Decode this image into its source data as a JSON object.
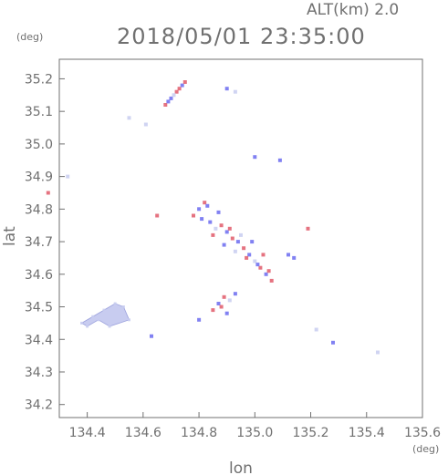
{
  "chart_data": {
    "type": "scatter",
    "title": "2018/05/01 23:35:00",
    "subtitle": "ALT(km) 2.0",
    "xlabel": "lon",
    "ylabel": "lat",
    "xunit": "(deg)",
    "yunit": "(deg)",
    "xlim": [
      134.3,
      135.6
    ],
    "ylim": [
      34.16,
      35.26
    ],
    "xticks": [
      "134.4",
      "134.6",
      "134.8",
      "135.0",
      "135.2",
      "135.4",
      "135.6"
    ],
    "yticks": [
      "34.2",
      "34.3",
      "34.4",
      "34.5",
      "34.6",
      "34.7",
      "34.8",
      "34.9",
      "35.0",
      "35.1",
      "35.2"
    ],
    "grid": false,
    "colors": {
      "positive": "#e05a6a",
      "negative": "#6b6bf0",
      "neutral": "#c8ccf0",
      "axis": "#707070"
    },
    "clusters": [
      {
        "name": "large-patch-west",
        "x": [
          134.38,
          134.42,
          134.46,
          134.5,
          134.53,
          134.55,
          134.48,
          134.44,
          134.4
        ],
        "y": [
          34.45,
          34.47,
          34.49,
          34.51,
          34.5,
          34.46,
          34.44,
          34.46,
          34.44
        ],
        "sign": [
          0,
          0,
          0,
          0,
          0,
          0,
          0,
          0,
          0
        ]
      },
      {
        "name": "north-cluster",
        "x": [
          134.68,
          134.7,
          134.72,
          134.74,
          134.75,
          134.71,
          134.69,
          134.73
        ],
        "y": [
          35.12,
          35.14,
          35.16,
          35.18,
          35.19,
          35.15,
          35.13,
          35.17
        ],
        "sign": [
          1,
          -1,
          1,
          -1,
          1,
          0,
          -1,
          1
        ]
      },
      {
        "name": "central-cluster",
        "x": [
          134.78,
          134.8,
          134.82,
          134.84,
          134.86,
          134.88,
          134.9,
          134.92,
          134.94,
          134.96,
          134.98,
          135.0,
          135.02,
          135.04,
          135.06,
          134.81,
          134.85,
          134.89,
          134.93,
          134.97,
          135.01,
          135.05,
          134.87,
          134.91,
          134.95,
          134.99,
          135.03,
          134.83
        ],
        "y": [
          34.78,
          34.8,
          34.82,
          34.76,
          34.74,
          34.75,
          34.73,
          34.71,
          34.7,
          34.68,
          34.66,
          34.64,
          34.62,
          34.6,
          34.58,
          34.77,
          34.72,
          34.69,
          34.67,
          34.65,
          34.63,
          34.61,
          34.79,
          34.74,
          34.72,
          34.7,
          34.66,
          34.81
        ],
        "sign": [
          1,
          -1,
          1,
          -1,
          0,
          1,
          -1,
          1,
          -1,
          1,
          -1,
          0,
          1,
          -1,
          1,
          -1,
          1,
          -1,
          0,
          1,
          -1,
          1,
          -1,
          1,
          0,
          -1,
          1,
          -1
        ]
      },
      {
        "name": "south-central",
        "x": [
          134.85,
          134.87,
          134.89,
          134.91,
          134.93,
          134.88,
          134.9
        ],
        "y": [
          34.49,
          34.51,
          34.53,
          34.52,
          34.54,
          34.5,
          34.48
        ],
        "sign": [
          1,
          -1,
          1,
          0,
          -1,
          1,
          -1
        ]
      },
      {
        "name": "scattered",
        "x": [
          134.26,
          134.33,
          134.55,
          134.61,
          134.63,
          134.8,
          134.9,
          134.93,
          135.0,
          135.09,
          135.14,
          135.19,
          135.22,
          135.28,
          135.44,
          134.65,
          135.12
        ],
        "y": [
          34.85,
          34.9,
          35.08,
          35.06,
          34.41,
          34.46,
          35.17,
          35.16,
          34.96,
          34.95,
          34.65,
          34.74,
          34.43,
          34.39,
          34.36,
          34.78,
          34.66
        ],
        "sign": [
          1,
          0,
          0,
          0,
          -1,
          -1,
          -1,
          0,
          -1,
          -1,
          -1,
          1,
          0,
          -1,
          0,
          1,
          -1
        ]
      }
    ]
  }
}
